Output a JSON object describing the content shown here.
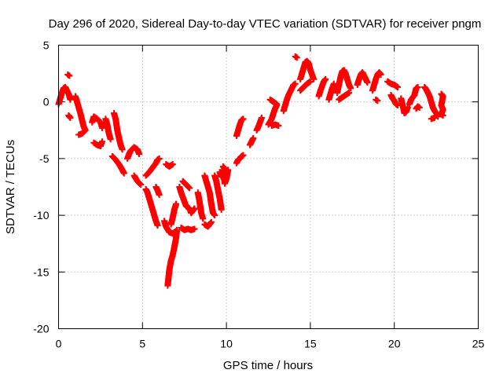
{
  "chart_data": {
    "type": "scatter",
    "title": "Day 296 of 2020, Sidereal Day-to-day VTEC variation (SDTVAR) for receiver pngm",
    "xlabel": "GPS time / hours",
    "ylabel": "SDTVAR / TECUs",
    "xlim": [
      0,
      25
    ],
    "ylim": [
      -20,
      5
    ],
    "xticks": [
      0,
      5,
      10,
      15,
      20,
      25
    ],
    "yticks": [
      -20,
      -15,
      -10,
      -5,
      0,
      5
    ],
    "grid": true,
    "marker": "plus",
    "color": "#ff0000",
    "series": [
      {
        "name": "SDTVAR",
        "segments": [
          [
            [
              0.0,
              -0.2
            ],
            [
              0.1,
              0.3
            ],
            [
              0.2,
              0.8
            ],
            [
              0.3,
              1.2
            ],
            [
              0.4,
              1.3
            ],
            [
              0.5,
              1.0
            ],
            [
              0.6,
              0.7
            ],
            [
              0.7,
              0.2
            ]
          ],
          [
            [
              0.55,
              2.4
            ],
            [
              0.65,
              2.3
            ]
          ],
          [
            [
              0.6,
              -1.2
            ],
            [
              0.7,
              -1.4
            ]
          ],
          [
            [
              1.0,
              0.5
            ],
            [
              1.1,
              0.0
            ],
            [
              1.2,
              -0.5
            ],
            [
              1.3,
              -1.0
            ],
            [
              1.4,
              -1.6
            ],
            [
              1.5,
              -2.2
            ],
            [
              1.6,
              -2.5
            ],
            [
              1.4,
              -2.8
            ],
            [
              1.2,
              -2.9
            ]
          ],
          [
            [
              2.0,
              -1.8
            ],
            [
              2.1,
              -1.3
            ],
            [
              2.3,
              -1.5
            ],
            [
              2.5,
              -1.8
            ],
            [
              2.6,
              -2.3
            ]
          ],
          [
            [
              2.1,
              -3.6
            ],
            [
              2.3,
              -3.8
            ],
            [
              2.5,
              -3.9
            ],
            [
              2.6,
              -3.5
            ]
          ],
          [
            [
              2.8,
              -1.5
            ],
            [
              2.9,
              -2.0
            ],
            [
              3.0,
              -2.8
            ],
            [
              3.1,
              -3.3
            ]
          ],
          [
            [
              3.3,
              -1.0
            ],
            [
              3.4,
              -1.5
            ],
            [
              3.5,
              -2.5
            ],
            [
              3.6,
              -3.2
            ],
            [
              3.7,
              -3.8
            ],
            [
              3.8,
              -4.2
            ]
          ],
          [
            [
              3.2,
              -4.8
            ],
            [
              3.4,
              -5.1
            ],
            [
              3.6,
              -5.5
            ],
            [
              3.8,
              -6.0
            ],
            [
              3.9,
              -6.3
            ]
          ],
          [
            [
              4.1,
              -5.0
            ],
            [
              4.2,
              -4.6
            ],
            [
              4.3,
              -4.3
            ],
            [
              4.5,
              -4.0
            ],
            [
              4.7,
              -4.2
            ],
            [
              4.8,
              -4.6
            ]
          ],
          [
            [
              4.5,
              -6.5
            ],
            [
              4.7,
              -7.0
            ],
            [
              4.9,
              -7.3
            ]
          ],
          [
            [
              5.2,
              -6.5
            ],
            [
              5.4,
              -6.2
            ],
            [
              5.6,
              -5.8
            ],
            [
              5.8,
              -5.4
            ],
            [
              5.9,
              -5.1
            ],
            [
              6.0,
              -5.0
            ]
          ],
          [
            [
              5.2,
              -7.7
            ],
            [
              5.3,
              -8.0
            ],
            [
              5.4,
              -8.5
            ],
            [
              5.5,
              -9.0
            ],
            [
              5.6,
              -9.5
            ],
            [
              5.7,
              -10.0
            ],
            [
              5.8,
              -10.5
            ],
            [
              5.9,
              -10.9
            ]
          ],
          [
            [
              5.8,
              -7.5
            ],
            [
              5.9,
              -7.8
            ],
            [
              6.0,
              -8.2
            ]
          ],
          [
            [
              6.3,
              -10.5
            ],
            [
              6.4,
              -11.0
            ],
            [
              6.6,
              -11.5
            ],
            [
              6.8,
              -11.6
            ],
            [
              7.0,
              -11.4
            ]
          ],
          [
            [
              6.4,
              -5.5
            ],
            [
              6.6,
              -5.7
            ],
            [
              6.8,
              -5.5
            ]
          ],
          [
            [
              6.5,
              -16.2
            ],
            [
              6.55,
              -15.5
            ],
            [
              6.6,
              -14.8
            ],
            [
              6.7,
              -14.0
            ],
            [
              6.8,
              -13.5
            ],
            [
              6.9,
              -12.8
            ],
            [
              7.0,
              -12.0
            ],
            [
              7.05,
              -11.3
            ]
          ],
          [
            [
              6.7,
              -10.8
            ],
            [
              6.8,
              -10.2
            ],
            [
              6.9,
              -9.5
            ],
            [
              7.0,
              -9.0
            ]
          ],
          [
            [
              7.2,
              -7.5
            ],
            [
              7.3,
              -8.0
            ],
            [
              7.4,
              -8.4
            ],
            [
              7.5,
              -8.8
            ],
            [
              7.6,
              -9.2
            ],
            [
              7.8,
              -9.4
            ],
            [
              7.9,
              -9.8
            ],
            [
              8.0,
              -9.6
            ],
            [
              8.1,
              -9.4
            ]
          ],
          [
            [
              7.3,
              -11.1
            ],
            [
              7.5,
              -11.3
            ],
            [
              7.7,
              -11.2
            ],
            [
              7.9,
              -11.3
            ],
            [
              8.1,
              -11.2
            ]
          ],
          [
            [
              7.4,
              -7.0
            ],
            [
              7.6,
              -7.3
            ],
            [
              7.8,
              -7.6
            ]
          ],
          [
            [
              8.3,
              -8.0
            ],
            [
              8.4,
              -8.8
            ],
            [
              8.5,
              -9.8
            ],
            [
              8.6,
              -10.3
            ]
          ],
          [
            [
              8.7,
              -6.5
            ],
            [
              8.8,
              -7.0
            ],
            [
              8.9,
              -7.5
            ],
            [
              9.0,
              -8.0
            ],
            [
              9.1,
              -9.0
            ],
            [
              9.2,
              -9.8
            ],
            [
              9.3,
              -10.0
            ]
          ],
          [
            [
              8.7,
              -10.8
            ],
            [
              8.9,
              -11.0
            ],
            [
              9.1,
              -10.6
            ]
          ],
          [
            [
              9.3,
              -6.5
            ],
            [
              9.4,
              -7.0
            ],
            [
              9.5,
              -7.8
            ],
            [
              9.6,
              -8.5
            ],
            [
              9.7,
              -9.5
            ]
          ],
          [
            [
              9.6,
              -6.2
            ],
            [
              9.7,
              -6.6
            ],
            [
              9.8,
              -6.0
            ],
            [
              9.9,
              -7.2
            ],
            [
              10.0,
              -6.8
            ],
            [
              10.1,
              -6.0
            ]
          ],
          [
            [
              9.8,
              -5.7
            ],
            [
              9.9,
              -5.9
            ]
          ],
          [
            [
              10.6,
              -5.4
            ],
            [
              10.7,
              -5.1
            ],
            [
              10.8,
              -5.0
            ],
            [
              10.9,
              -4.8
            ],
            [
              11.0,
              -4.7
            ]
          ],
          [
            [
              10.6,
              -3.0
            ],
            [
              10.7,
              -2.5
            ],
            [
              10.8,
              -2.0
            ],
            [
              10.9,
              -1.6
            ],
            [
              11.0,
              -1.5
            ]
          ],
          [
            [
              11.4,
              -3.8
            ],
            [
              11.5,
              -3.5
            ],
            [
              11.6,
              -3.2
            ]
          ],
          [
            [
              11.8,
              -2.5
            ],
            [
              11.9,
              -2.2
            ],
            [
              12.0,
              -1.8
            ],
            [
              12.1,
              -1.4
            ]
          ],
          [
            [
              12.5,
              -2.0
            ],
            [
              12.7,
              -1.5
            ],
            [
              12.8,
              -1.0
            ],
            [
              12.9,
              -0.6
            ],
            [
              13.0,
              -0.3
            ]
          ],
          [
            [
              12.7,
              -2.1
            ],
            [
              12.9,
              -2.0
            ],
            [
              13.1,
              -2.1
            ]
          ],
          [
            [
              12.6,
              0.2
            ],
            [
              12.8,
              0.0
            ],
            [
              13.0,
              -0.2
            ]
          ],
          [
            [
              13.4,
              -0.8
            ],
            [
              13.5,
              -0.3
            ],
            [
              13.6,
              0.2
            ],
            [
              13.7,
              0.6
            ],
            [
              13.8,
              0.9
            ],
            [
              13.9,
              1.2
            ],
            [
              14.0,
              1.5
            ],
            [
              14.1,
              1.6
            ]
          ],
          [
            [
              14.1,
              4.0
            ],
            [
              14.2,
              3.9
            ]
          ],
          [
            [
              14.4,
              2.0
            ],
            [
              14.5,
              2.5
            ],
            [
              14.6,
              3.0
            ],
            [
              14.7,
              3.5
            ],
            [
              14.8,
              3.6
            ],
            [
              14.9,
              3.4
            ],
            [
              15.0,
              2.8
            ],
            [
              15.1,
              2.4
            ],
            [
              15.2,
              2.0
            ]
          ],
          [
            [
              14.4,
              1.0
            ],
            [
              14.6,
              1.3
            ],
            [
              14.8,
              1.6
            ],
            [
              15.0,
              1.8
            ]
          ],
          [
            [
              15.5,
              0.5
            ],
            [
              15.6,
              1.0
            ],
            [
              15.7,
              1.4
            ],
            [
              15.8,
              1.8
            ],
            [
              15.9,
              2.0
            ]
          ],
          [
            [
              16.1,
              0.2
            ],
            [
              16.2,
              0.7
            ],
            [
              16.3,
              1.2
            ],
            [
              16.4,
              1.6
            ]
          ],
          [
            [
              16.6,
              0.8
            ],
            [
              16.7,
              1.5
            ],
            [
              16.8,
              2.2
            ],
            [
              16.9,
              2.7
            ],
            [
              17.0,
              2.8
            ],
            [
              17.1,
              2.5
            ],
            [
              17.2,
              2.0
            ],
            [
              17.3,
              1.5
            ],
            [
              17.4,
              1.2
            ]
          ],
          [
            [
              16.7,
              0.2
            ],
            [
              16.9,
              0.4
            ],
            [
              17.1,
              0.6
            ],
            [
              17.3,
              0.8
            ]
          ],
          [
            [
              17.8,
              1.5
            ],
            [
              17.9,
              2.0
            ],
            [
              18.0,
              2.4
            ],
            [
              18.1,
              2.6
            ],
            [
              18.2,
              2.3
            ],
            [
              18.3,
              2.0
            ],
            [
              18.4,
              1.7
            ]
          ],
          [
            [
              18.7,
              1.0
            ],
            [
              18.8,
              1.5
            ],
            [
              18.9,
              2.0
            ],
            [
              19.0,
              2.4
            ],
            [
              19.1,
              2.6
            ],
            [
              19.2,
              2.4
            ]
          ],
          [
            [
              18.9,
              0.2
            ],
            [
              19.0,
              0.1
            ]
          ],
          [
            [
              19.6,
              1.8
            ],
            [
              19.8,
              1.6
            ],
            [
              20.0,
              1.5
            ],
            [
              20.2,
              1.3
            ]
          ],
          [
            [
              19.8,
              0.6
            ],
            [
              19.9,
              0.3
            ],
            [
              20.0,
              0.1
            ],
            [
              20.1,
              -0.2
            ],
            [
              20.2,
              -0.3
            ]
          ],
          [
            [
              20.4,
              0.3
            ],
            [
              20.5,
              -0.3
            ],
            [
              20.6,
              -1.0
            ],
            [
              20.7,
              -0.9
            ],
            [
              20.8,
              -0.5
            ]
          ],
          [
            [
              20.9,
              -0.2
            ],
            [
              21.0,
              0.2
            ],
            [
              21.2,
              0.6
            ],
            [
              21.3,
              1.2
            ],
            [
              21.4,
              1.3
            ]
          ],
          [
            [
              21.3,
              -0.6
            ],
            [
              21.4,
              -0.4
            ],
            [
              21.5,
              -0.5
            ]
          ],
          [
            [
              21.8,
              1.3
            ],
            [
              21.9,
              1.1
            ],
            [
              22.0,
              0.8
            ],
            [
              22.1,
              0.5
            ],
            [
              22.2,
              0.0
            ],
            [
              22.3,
              -0.5
            ],
            [
              22.4,
              -0.8
            ],
            [
              22.5,
              -1.0
            ],
            [
              22.6,
              -1.3
            ]
          ],
          [
            [
              22.2,
              -1.5
            ],
            [
              22.4,
              -1.4
            ]
          ],
          [
            [
              22.8,
              0.7
            ],
            [
              22.9,
              0.5
            ],
            [
              22.8,
              -0.3
            ],
            [
              22.9,
              -0.7
            ],
            [
              22.8,
              -1.1
            ],
            [
              22.9,
              -1.2
            ]
          ]
        ]
      }
    ]
  }
}
